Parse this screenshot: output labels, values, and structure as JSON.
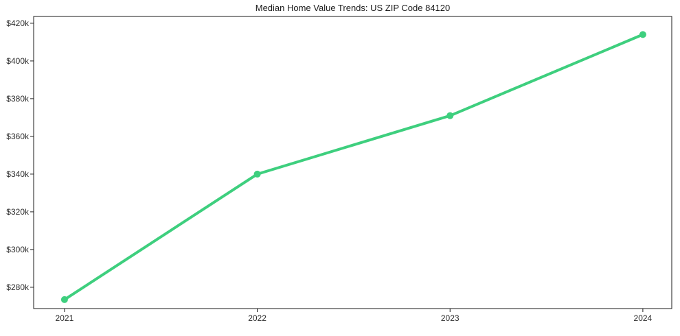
{
  "chart_data": {
    "type": "line",
    "title": "Median Home Value Trends: US ZIP Code 84120",
    "xlabel": "",
    "ylabel": "",
    "x": [
      2021,
      2022,
      2023,
      2024
    ],
    "x_tick_labels": [
      "2021",
      "2022",
      "2023",
      "2024"
    ],
    "series": [
      {
        "name": "Median Home Value",
        "values": [
          273450,
          340000,
          371000,
          414000
        ],
        "color": "#3ecf7e",
        "marker": "circle"
      }
    ],
    "y_ticks": [
      280000,
      300000,
      320000,
      340000,
      360000,
      380000,
      400000,
      420000
    ],
    "y_tick_labels": [
      "$280k",
      "$300k",
      "$320k",
      "$340k",
      "$360k",
      "$380k",
      "$400k",
      "$420k"
    ],
    "xlim": [
      2020.84,
      2024.15
    ],
    "ylim": [
      268700,
      423600
    ],
    "grid": false,
    "legend_visible": false,
    "colors": {
      "line": "#3ecf7e",
      "marker": "#3ecf7e",
      "text": "#2b2b2b",
      "title_text": "#1a1a1a",
      "spine": "#1a1a1a",
      "background": "#ffffff"
    }
  }
}
